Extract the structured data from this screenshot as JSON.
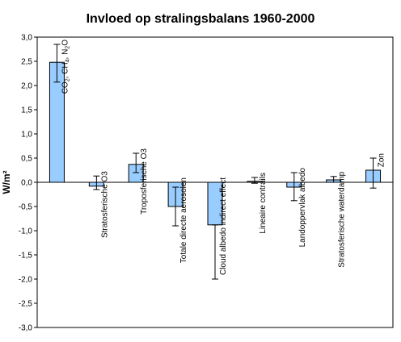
{
  "chart_data": {
    "type": "bar",
    "title": "Invloed op stralingsbalans 1960-2000",
    "xlabel": "",
    "ylabel": "W/m²",
    "ylim": [
      -3.0,
      3.0
    ],
    "y_ticks": [
      "3,0",
      "2,5",
      "2,0",
      "1,5",
      "1,0",
      "0,5",
      "0,0",
      "-0,5",
      "-1,0",
      "-1,5",
      "-2,0",
      "-2,5",
      "-3,0"
    ],
    "y_tick_values": [
      3.0,
      2.5,
      2.0,
      1.5,
      1.0,
      0.5,
      0.0,
      -0.5,
      -1.0,
      -1.5,
      -2.0,
      -2.5,
      -3.0
    ],
    "grid": false,
    "bar_color": "#99ccff",
    "categories": [
      "CO2, CH4, N2O",
      "Stratosferische O3",
      "Troposferische O3",
      "Totale directe aerosolen",
      "Cloud albedo indirect effect",
      "Lineaire contrails",
      "Landoppervlak albedo",
      "Stratosferische waterdamp",
      "Zon"
    ],
    "category_parts": [
      [
        {
          "text": "CO",
          "sub": false
        },
        {
          "text": "2",
          "sub": true
        },
        {
          "text": ", CH",
          "sub": false
        },
        {
          "text": "4",
          "sub": true
        },
        {
          "text": ", N",
          "sub": false
        },
        {
          "text": "2",
          "sub": true
        },
        {
          "text": "O",
          "sub": false
        }
      ],
      [
        {
          "text": "Stratosferische O3",
          "sub": false
        }
      ],
      [
        {
          "text": "Troposferische O3",
          "sub": false
        }
      ],
      [
        {
          "text": "Totale directe aerosolen",
          "sub": false
        }
      ],
      [
        {
          "text": "Cloud albedo indirect effect",
          "sub": false
        }
      ],
      [
        {
          "text": "Lineaire contrails",
          "sub": false
        }
      ],
      [
        {
          "text": "Landoppervlak albedo",
          "sub": false
        }
      ],
      [
        {
          "text": "Stratosferische waterdamp",
          "sub": false
        }
      ],
      [
        {
          "text": "Zon",
          "sub": false
        }
      ]
    ],
    "values": [
      2.48,
      -0.08,
      0.37,
      -0.5,
      -0.88,
      0.02,
      -0.1,
      0.05,
      0.25
    ],
    "error_low": [
      2.07,
      -0.15,
      0.2,
      -0.9,
      -2.0,
      -0.02,
      -0.38,
      0.0,
      -0.12
    ],
    "error_high": [
      2.85,
      0.13,
      0.6,
      -0.1,
      -0.88,
      0.1,
      0.2,
      0.12,
      0.5
    ]
  }
}
